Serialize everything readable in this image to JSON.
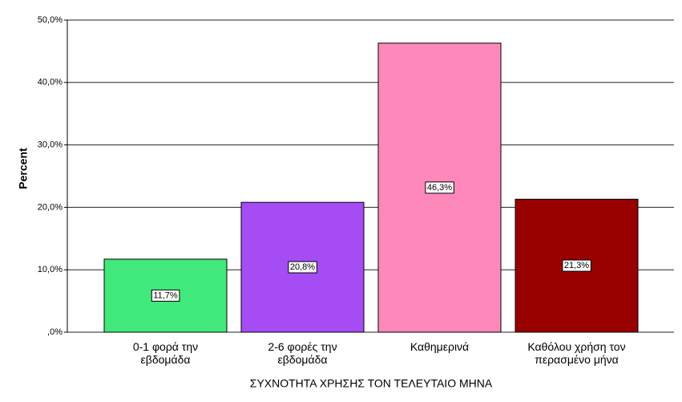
{
  "chart_data": {
    "type": "bar",
    "x_label": "ΣΥΧΝΟΤΗΤΑ ΧΡΗΣΗΣ ΤΟΝ ΤΕΛΕΥΤΑΙΟ ΜΗΝΑ",
    "y_label": "Percent",
    "categories": [
      "0-1 φορά την\nεβδομάδα",
      "2-6 φορές την\nεβδομάδα",
      "Καθημερινά",
      "Καθόλου χρήση τον\nπερασμένο μήνα"
    ],
    "values": [
      11.7,
      20.8,
      46.3,
      21.3
    ],
    "value_labels": [
      "11,7%",
      "20,8%",
      "46,3%",
      "21,3%"
    ],
    "colors": [
      "#41e87b",
      "#a64cf5",
      "#ff88bb",
      "#990000"
    ],
    "ylim": [
      0,
      50
    ],
    "yticks": [
      {
        "value": 0,
        "label": ",0%"
      },
      {
        "value": 10,
        "label": "10,0%"
      },
      {
        "value": 20,
        "label": "20,0%"
      },
      {
        "value": 30,
        "label": "30,0%"
      },
      {
        "value": 40,
        "label": "40,0%"
      },
      {
        "value": 50,
        "label": "50,0%"
      }
    ],
    "grid": true
  }
}
